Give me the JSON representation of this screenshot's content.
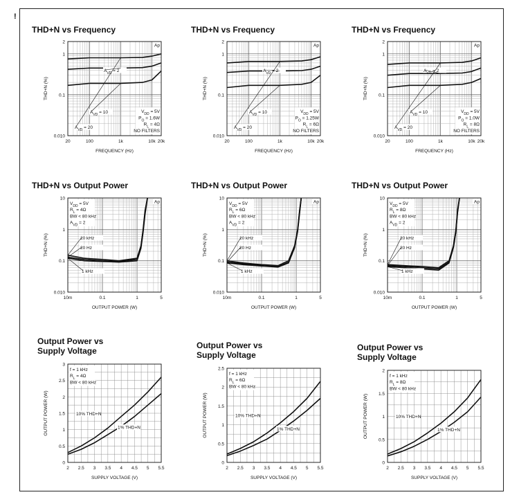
{
  "corner_mark": "!",
  "chart_data": [
    {
      "type": "line",
      "title": "THD+N vs Frequency",
      "xlabel": "FREQUENCY (Hz)",
      "ylabel": "THD+N (%)",
      "xscale": "log",
      "yscale": "log",
      "xlim": [
        20,
        20000
      ],
      "ylim": [
        0.01,
        2
      ],
      "xticks": [
        "20",
        "100",
        "1k",
        "10k",
        "20k"
      ],
      "yticks": [
        "0.010",
        "0.1",
        "1",
        "2"
      ],
      "ap_mark": "Ap",
      "conditions": [
        "V<sub>DD</sub> = 5V",
        "P<sub>O</sub> = 1.6W",
        "R<sub>L</sub> = 4Ω",
        "NO FILTERS"
      ],
      "series": [
        {
          "name": "A<sub>VD</sub> = 20",
          "x": [
            20,
            100,
            1000,
            5000,
            10000,
            20000
          ],
          "y": [
            0.75,
            0.8,
            0.8,
            0.82,
            0.88,
            1.0
          ]
        },
        {
          "name": "A<sub>VD</sub> = 2",
          "x": [
            20,
            100,
            1000,
            5000,
            10000,
            20000
          ],
          "y": [
            0.42,
            0.45,
            0.45,
            0.46,
            0.5,
            0.6
          ]
        },
        {
          "name": "A<sub>VD</sub> = 10",
          "x": [
            20,
            100,
            1000,
            5000,
            10000,
            20000
          ],
          "y": [
            0.17,
            0.19,
            0.19,
            0.2,
            0.23,
            0.38
          ]
        }
      ],
      "annotations": [
        {
          "text": "A<sub>VD</sub> = 2",
          "target": 1
        },
        {
          "text": "A<sub>VD</sub> = 10",
          "target": 2
        },
        {
          "text": "A<sub>VD</sub> = 20",
          "target": 0
        }
      ]
    },
    {
      "type": "line",
      "title": "THD+N vs Frequency",
      "xlabel": "FREQUENCY (Hz)",
      "ylabel": "THD+N (%)",
      "xscale": "log",
      "yscale": "log",
      "xlim": [
        20,
        20000
      ],
      "ylim": [
        0.01,
        2
      ],
      "xticks": [
        "20",
        "100",
        "1k",
        "10k",
        "20k"
      ],
      "yticks": [
        "0.010",
        "0.1",
        "1",
        "2"
      ],
      "ap_mark": "Ap",
      "conditions": [
        "V<sub>DD</sub> = 5V",
        "P<sub>O</sub> = 1.25W",
        "R<sub>L</sub> = 6Ω",
        "NO FILTERS"
      ],
      "series": [
        {
          "name": "A<sub>VD</sub> = 20",
          "x": [
            20,
            100,
            1000,
            5000,
            10000,
            20000
          ],
          "y": [
            0.6,
            0.65,
            0.65,
            0.67,
            0.72,
            0.85
          ]
        },
        {
          "name": "A<sub>VD</sub> = 2",
          "x": [
            20,
            100,
            1000,
            5000,
            10000,
            20000
          ],
          "y": [
            0.35,
            0.38,
            0.38,
            0.39,
            0.42,
            0.5
          ]
        },
        {
          "name": "A<sub>VD</sub> = 10",
          "x": [
            20,
            100,
            1000,
            5000,
            10000,
            20000
          ],
          "y": [
            0.15,
            0.17,
            0.17,
            0.18,
            0.2,
            0.3
          ]
        }
      ],
      "annotations": [
        {
          "text": "A<sub>VD</sub> = 2",
          "target": 1
        },
        {
          "text": "A<sub>VD</sub> = 10",
          "target": 2
        },
        {
          "text": "A<sub>VD</sub> = 20",
          "target": 0
        }
      ]
    },
    {
      "type": "line",
      "title": "THD+N vs Frequency",
      "xlabel": "FREQUENCY (Hz)",
      "ylabel": "THD+N (%)",
      "xscale": "log",
      "yscale": "log",
      "xlim": [
        20,
        20000
      ],
      "ylim": [
        0.01,
        2
      ],
      "xticks": [
        "20",
        "100",
        "1k",
        "10k",
        "20k"
      ],
      "yticks": [
        "0.010",
        "0.1",
        "1",
        "2"
      ],
      "ap_mark": "Ap",
      "conditions": [
        "V<sub>DD</sub> = 5V",
        "P<sub>O</sub> = 1.0W",
        "R<sub>L</sub> = 8Ω",
        "NO FILTERS"
      ],
      "series": [
        {
          "name": "A<sub>VD</sub> = 20",
          "x": [
            20,
            100,
            1000,
            5000,
            10000,
            20000
          ],
          "y": [
            0.55,
            0.6,
            0.6,
            0.62,
            0.67,
            0.8
          ]
        },
        {
          "name": "A<sub>VD</sub> = 2",
          "x": [
            20,
            100,
            1000,
            5000,
            10000,
            20000
          ],
          "y": [
            0.3,
            0.33,
            0.33,
            0.34,
            0.37,
            0.45
          ]
        },
        {
          "name": "A<sub>VD</sub> = 10",
          "x": [
            20,
            100,
            1000,
            5000,
            10000,
            20000
          ],
          "y": [
            0.15,
            0.17,
            0.17,
            0.18,
            0.2,
            0.25
          ]
        }
      ],
      "annotations": [
        {
          "text": "A<sub>VD</sub> = 2",
          "target": 1
        },
        {
          "text": "A<sub>VD</sub> = 10",
          "target": 2
        },
        {
          "text": "A<sub>VD</sub> = 20",
          "target": 0
        }
      ]
    },
    {
      "type": "line",
      "title": "THD+N vs Output Power",
      "xlabel": "OUTPUT POWER (W)",
      "ylabel": "THD+N (%)",
      "xscale": "log",
      "yscale": "log",
      "xlim": [
        0.01,
        5
      ],
      "ylim": [
        0.01,
        10
      ],
      "xticks": [
        "10m",
        "0.1",
        "1",
        "5"
      ],
      "yticks": [
        "0.010",
        "0.1",
        "1",
        "10"
      ],
      "ap_mark": "Ap",
      "conditions": [
        "V<sub>DD</sub> = 5V",
        "R<sub>L</sub> = 4Ω",
        "BW < 80 kHz",
        "A<sub>VD</sub> = 2"
      ],
      "series": [
        {
          "name": "20 kHz",
          "x": [
            0.01,
            0.03,
            0.1,
            0.3,
            1.0,
            1.3,
            1.5,
            1.7,
            2.0
          ],
          "y": [
            0.15,
            0.12,
            0.11,
            0.1,
            0.12,
            0.3,
            1.0,
            4.0,
            10.0
          ]
        },
        {
          "name": "20 Hz",
          "x": [
            0.01,
            0.03,
            0.1,
            0.3,
            1.0,
            1.3,
            1.5,
            1.7,
            2.0
          ],
          "y": [
            0.13,
            0.11,
            0.1,
            0.095,
            0.11,
            0.28,
            0.9,
            3.5,
            10.0
          ]
        },
        {
          "name": "1 kHz",
          "x": [
            0.01,
            0.03,
            0.1,
            0.3,
            1.0,
            1.3,
            1.5,
            1.7,
            2.0
          ],
          "y": [
            0.12,
            0.1,
            0.095,
            0.09,
            0.1,
            0.25,
            0.8,
            3.0,
            10.0
          ]
        }
      ],
      "annotations": [
        {
          "text": "20 kHz",
          "target": 0
        },
        {
          "text": "20 Hz",
          "target": 1
        },
        {
          "text": "1 kHz",
          "target": 2
        }
      ]
    },
    {
      "type": "line",
      "title": "THD+N vs Output Power",
      "xlabel": "OUTPUT POWER (W)",
      "ylabel": "THD+N (%)",
      "xscale": "log",
      "yscale": "log",
      "xlim": [
        0.01,
        5
      ],
      "ylim": [
        0.01,
        10
      ],
      "xticks": [
        "10m",
        "0.1",
        "1",
        "5"
      ],
      "yticks": [
        "0.010",
        "0.1",
        "1",
        "10"
      ],
      "ap_mark": "Ap",
      "conditions": [
        "V<sub>DD</sub> = 5V",
        "R<sub>L</sub> = 6Ω",
        "BW < 80 kHz",
        "A<sub>VD</sub> = 2"
      ],
      "series": [
        {
          "name": "20 kHz",
          "x": [
            0.01,
            0.03,
            0.1,
            0.3,
            0.6,
            0.9,
            1.1,
            1.25,
            1.4
          ],
          "y": [
            0.1,
            0.085,
            0.075,
            0.07,
            0.1,
            0.3,
            1.0,
            4.0,
            10.0
          ]
        },
        {
          "name": "20 Hz",
          "x": [
            0.01,
            0.03,
            0.1,
            0.3,
            0.6,
            0.9,
            1.1,
            1.25,
            1.4
          ],
          "y": [
            0.09,
            0.08,
            0.07,
            0.065,
            0.09,
            0.28,
            0.9,
            3.5,
            10.0
          ]
        },
        {
          "name": "1 kHz",
          "x": [
            0.01,
            0.03,
            0.1,
            0.3,
            0.6,
            0.9,
            1.1,
            1.25,
            1.4
          ],
          "y": [
            0.085,
            0.075,
            0.068,
            0.063,
            0.085,
            0.26,
            0.85,
            3.2,
            10.0
          ]
        }
      ],
      "annotations": [
        {
          "text": "20 kHz",
          "target": 0
        },
        {
          "text": "20 Hz",
          "target": 1
        },
        {
          "text": "1 kHz",
          "target": 2
        }
      ]
    },
    {
      "type": "line",
      "title": "THD+N vs Output Power",
      "xlabel": "OUTPUT POWER (W)",
      "ylabel": "THD+N (%)",
      "xscale": "log",
      "yscale": "log",
      "xlim": [
        0.01,
        5
      ],
      "ylim": [
        0.01,
        10
      ],
      "xticks": [
        "10m",
        "0.1",
        "1",
        "5"
      ],
      "yticks": [
        "0.010",
        "0.1",
        "1",
        "10"
      ],
      "ap_mark": "Ap",
      "conditions": [
        "V<sub>DD</sub> = 5V",
        "R<sub>L</sub> = 8Ω",
        "BW < 80 kHz",
        "A<sub>VD</sub> = 2"
      ],
      "series": [
        {
          "name": "20 kHz",
          "x": [
            0.01,
            0.03,
            0.1,
            0.3,
            0.6,
            0.8,
            0.95,
            1.05,
            1.2
          ],
          "y": [
            0.075,
            0.07,
            0.065,
            0.06,
            0.1,
            0.3,
            1.0,
            4.0,
            10.0
          ]
        },
        {
          "name": "20 Hz",
          "x": [
            0.01,
            0.03,
            0.1,
            0.3,
            0.6,
            0.8,
            0.95,
            1.05,
            1.2
          ],
          "y": [
            0.07,
            0.065,
            0.06,
            0.055,
            0.09,
            0.28,
            0.9,
            3.5,
            10.0
          ]
        },
        {
          "name": "1 kHz",
          "x": [
            0.01,
            0.03,
            0.1,
            0.3,
            0.6,
            0.8,
            0.95,
            1.05,
            1.2
          ],
          "y": [
            0.065,
            0.06,
            0.055,
            0.05,
            0.085,
            0.26,
            0.85,
            3.2,
            10.0
          ]
        }
      ],
      "annotations": [
        {
          "text": "20 kHz",
          "target": 0
        },
        {
          "text": "20 Hz",
          "target": 1
        },
        {
          "text": "1 kHz",
          "target": 2
        }
      ]
    },
    {
      "type": "line",
      "title": "Output Power vs",
      "subtitle": "Supply Voltage",
      "xlabel": "SUPPLY VOLTAGE (V)",
      "ylabel": "OUTPUT POWER (W)",
      "xscale": "linear",
      "yscale": "linear",
      "xlim": [
        2,
        5.5
      ],
      "ylim": [
        0,
        3
      ],
      "xticks": [
        "2",
        "2.5",
        "3",
        "3.5",
        "4",
        "4.5",
        "5",
        "5.5"
      ],
      "yticks": [
        "0",
        "0.5",
        "1",
        "1.5",
        "2",
        "2.5",
        "3"
      ],
      "conditions": [
        "f = 1 kHz",
        "R<sub>L</sub> = 4Ω",
        "BW < 80 kHz"
      ],
      "series": [
        {
          "name": "10% THD+N",
          "x": [
            2,
            2.5,
            3,
            3.5,
            4,
            4.5,
            5,
            5.5
          ],
          "y": [
            0.3,
            0.5,
            0.75,
            1.05,
            1.4,
            1.75,
            2.15,
            2.6
          ]
        },
        {
          "name": "1% THD+N",
          "x": [
            2,
            2.5,
            3,
            3.5,
            4,
            4.5,
            5,
            5.5
          ],
          "y": [
            0.25,
            0.4,
            0.6,
            0.85,
            1.1,
            1.4,
            1.75,
            2.1
          ]
        }
      ],
      "annotations": [
        {
          "text": "10% THD+N",
          "target": 0
        },
        {
          "text": "1% THD+N",
          "target": 1
        }
      ]
    },
    {
      "type": "line",
      "title": "Output Power vs",
      "subtitle": "Supply Voltage",
      "xlabel": "SUPPLY VOLTAGE (V)",
      "ylabel": "OUTPUT POWER (W)",
      "xscale": "linear",
      "yscale": "linear",
      "xlim": [
        2,
        5.5
      ],
      "ylim": [
        0,
        2.5
      ],
      "xticks": [
        "2",
        "2.5",
        "3",
        "3.5",
        "4",
        "4.5",
        "5",
        "5.5"
      ],
      "yticks": [
        "0",
        "0.5",
        "1",
        "1.5",
        "2",
        "2.5"
      ],
      "conditions": [
        "f = 1 kHz",
        "R<sub>L</sub> = 6Ω",
        "BW < 80 kHz"
      ],
      "series": [
        {
          "name": "10% THD+N",
          "x": [
            2,
            2.5,
            3,
            3.5,
            4,
            4.5,
            5,
            5.5
          ],
          "y": [
            0.22,
            0.37,
            0.55,
            0.78,
            1.05,
            1.35,
            1.7,
            2.15
          ]
        },
        {
          "name": "1% THD+N",
          "x": [
            2,
            2.5,
            3,
            3.5,
            4,
            4.5,
            5,
            5.5
          ],
          "y": [
            0.18,
            0.3,
            0.45,
            0.62,
            0.85,
            1.1,
            1.38,
            1.7
          ]
        }
      ],
      "annotations": [
        {
          "text": "10% THD+N",
          "target": 0
        },
        {
          "text": "1% THD+N",
          "target": 1
        }
      ]
    },
    {
      "type": "line",
      "title": "Output Power vs",
      "subtitle": "Supply Voltage",
      "xlabel": "SUPPLY VOLTAGE (V)",
      "ylabel": "OUTPUT POWER (W)",
      "xscale": "linear",
      "yscale": "linear",
      "xlim": [
        2,
        5.5
      ],
      "ylim": [
        0,
        2
      ],
      "xticks": [
        "2",
        "2.5",
        "3",
        "3.5",
        "4",
        "4.5",
        "5",
        "5.5"
      ],
      "yticks": [
        "0",
        "0.5",
        "1",
        "1.5",
        "2"
      ],
      "conditions": [
        "f = 1 kHz",
        "R<sub>L</sub> = 8Ω",
        "BW < 80 kHz"
      ],
      "series": [
        {
          "name": "10% THD+N",
          "x": [
            2,
            2.5,
            3,
            3.5,
            4,
            4.5,
            5,
            5.5
          ],
          "y": [
            0.18,
            0.3,
            0.45,
            0.64,
            0.85,
            1.1,
            1.4,
            1.8
          ]
        },
        {
          "name": "1% THD+N",
          "x": [
            2,
            2.5,
            3,
            3.5,
            4,
            4.5,
            5,
            5.5
          ],
          "y": [
            0.14,
            0.23,
            0.35,
            0.5,
            0.67,
            0.87,
            1.1,
            1.42
          ]
        }
      ],
      "annotations": [
        {
          "text": "10% THD+N",
          "target": 0
        },
        {
          "text": "1% THD+N",
          "target": 1
        }
      ]
    }
  ]
}
